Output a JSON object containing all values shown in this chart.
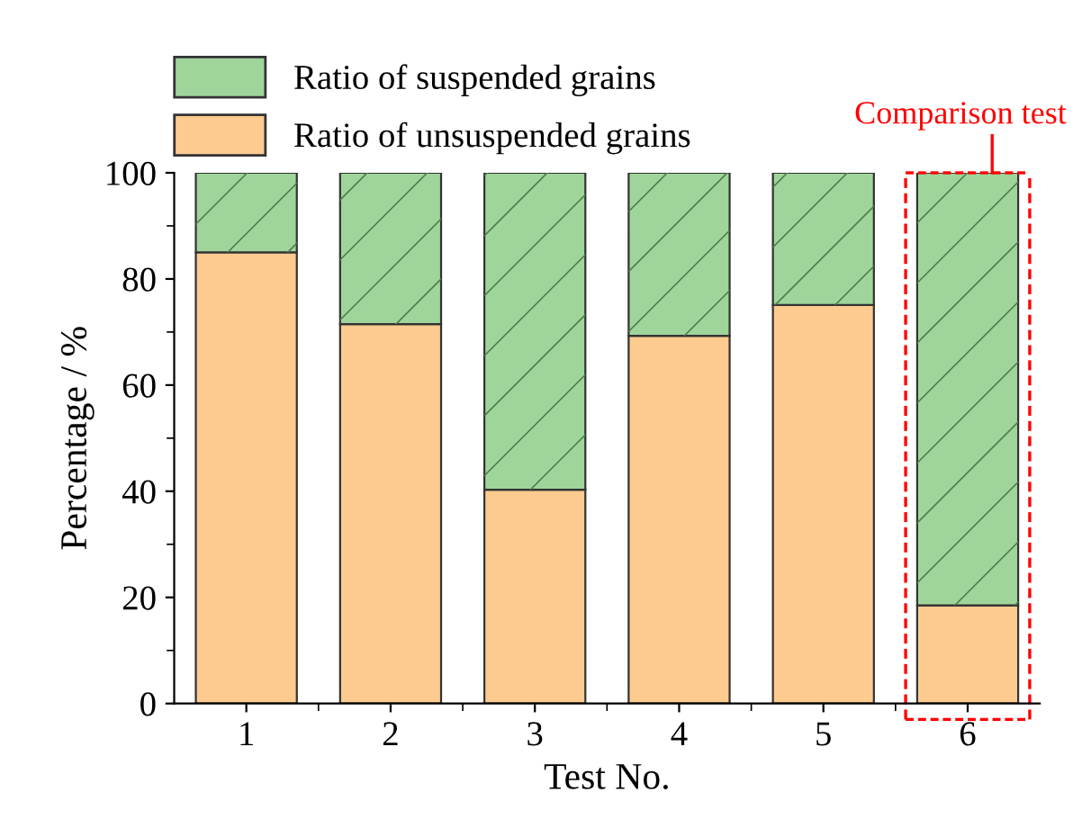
{
  "chart_data": {
    "type": "bar",
    "stacked": true,
    "xlabel": "Test No.",
    "ylabel": "Percentage / %",
    "categories": [
      "1",
      "2",
      "3",
      "4",
      "5",
      "6"
    ],
    "series": [
      {
        "name": "Ratio of unsuspended grains",
        "color": "#fdcb8f",
        "values": [
          85.0,
          71.5,
          40.3,
          69.3,
          75.1,
          18.5
        ]
      },
      {
        "name": "Ratio of suspended grains",
        "color": "#9fd59b",
        "values": [
          15.0,
          28.5,
          59.7,
          30.7,
          24.9,
          81.5
        ]
      }
    ],
    "ylim": [
      0,
      100
    ],
    "yticks": [
      0,
      20,
      40,
      60,
      80,
      100
    ],
    "grid": false,
    "legend": "top",
    "annotations": [
      {
        "text": "Comparison test",
        "x": "6",
        "y": 100
      }
    ]
  }
}
